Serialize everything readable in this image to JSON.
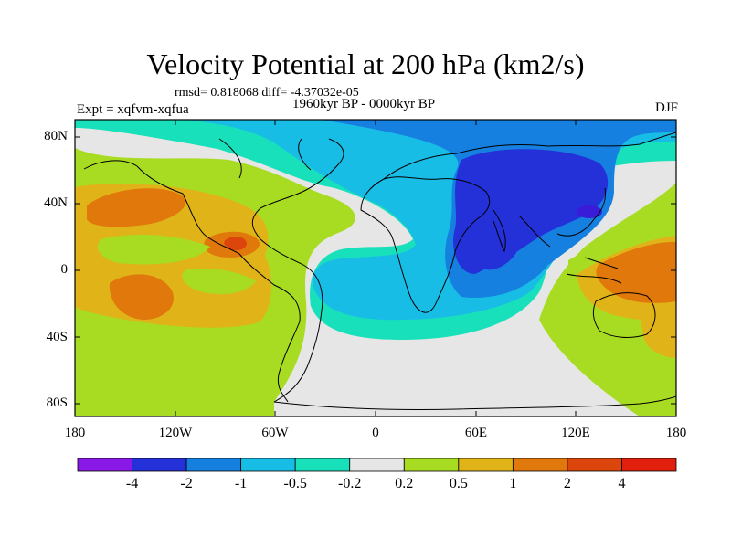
{
  "title": "Velocity Potential at 200 hPa (km2/s)",
  "stats": "rmsd= 0.818068 diff= -4.37032e-05",
  "experiment": "Expt = xqfvm-xqfua",
  "period": "1960kyr BP - 0000kyr BP",
  "season": "DJF",
  "lat_labels": [
    "80N",
    "40N",
    "0",
    "40S",
    "80S"
  ],
  "lon_labels": [
    "180",
    "120W",
    "60W",
    "0",
    "60E",
    "120E",
    "180"
  ],
  "colorbar": {
    "colors": [
      "#8a18e6",
      "#2430d8",
      "#1580e0",
      "#18bde6",
      "#18e0bb",
      "#e6e6e6",
      "#a8dc22",
      "#e0b418",
      "#e0780c",
      "#dc460c",
      "#e0200c"
    ],
    "labels": [
      "-4",
      "-2",
      "-1",
      "-0.5",
      "-0.2",
      "0.2",
      "0.5",
      "1",
      "2",
      "4"
    ]
  }
}
